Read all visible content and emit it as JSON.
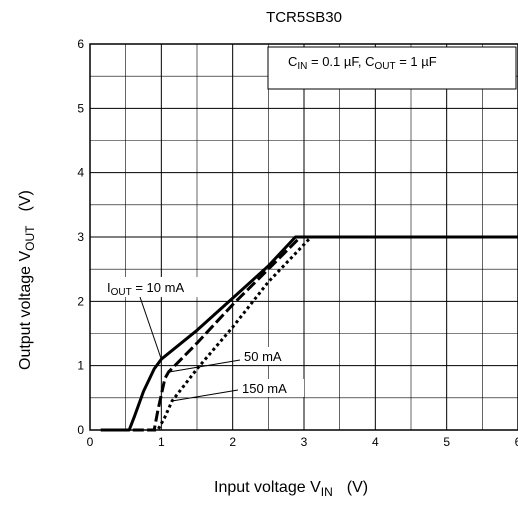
{
  "chart_data": {
    "type": "line",
    "title": "TCR5SB30",
    "xlabel": "Input voltage   V",
    "xlabel_sub": "IN",
    "xlabel_unit": "(V)",
    "ylabel": "Output voltage   V",
    "ylabel_sub": "OUT",
    "ylabel_unit": "(V)",
    "xlim": [
      0,
      6
    ],
    "ylim": [
      0,
      6
    ],
    "xticks": [
      "0",
      "1",
      "2",
      "3",
      "4",
      "5",
      "6"
    ],
    "yticks": [
      "0",
      "1",
      "2",
      "3",
      "4",
      "5",
      "6"
    ],
    "grid": true,
    "condition": {
      "c_in_prefix": "C",
      "c_in_sub": "IN",
      "c_in_value": " = 0.1 µF, ",
      "c_out_prefix": "C",
      "c_out_sub": "OUT",
      "c_out_value": " = 1 µF"
    },
    "series": [
      {
        "name_prefix": "I",
        "name_sub": "OUT",
        "name_suffix": " = 10 mA",
        "style": "solid",
        "points": [
          [
            0.15,
            0
          ],
          [
            0.55,
            0
          ],
          [
            0.62,
            0.2
          ],
          [
            0.75,
            0.6
          ],
          [
            0.9,
            0.95
          ],
          [
            1.0,
            1.1
          ],
          [
            1.5,
            1.55
          ],
          [
            2.0,
            2.05
          ],
          [
            2.5,
            2.55
          ],
          [
            2.88,
            3.0
          ],
          [
            6.0,
            3.0
          ]
        ]
      },
      {
        "name": "50 mA",
        "style": "dashed",
        "points": [
          [
            0.6,
            0
          ],
          [
            0.9,
            0
          ],
          [
            0.95,
            0.3
          ],
          [
            1.05,
            0.8
          ],
          [
            1.1,
            0.9
          ],
          [
            1.5,
            1.35
          ],
          [
            2.0,
            1.95
          ],
          [
            2.5,
            2.5
          ],
          [
            2.95,
            3.0
          ],
          [
            6.0,
            3.0
          ]
        ]
      },
      {
        "name": "150 mA",
        "style": "dotted",
        "points": [
          [
            0.8,
            0
          ],
          [
            0.95,
            0
          ],
          [
            1.05,
            0.2
          ],
          [
            1.15,
            0.45
          ],
          [
            1.5,
            0.95
          ],
          [
            2.0,
            1.6
          ],
          [
            2.5,
            2.3
          ],
          [
            3.1,
            3.0
          ],
          [
            6.0,
            3.0
          ]
        ]
      }
    ]
  }
}
